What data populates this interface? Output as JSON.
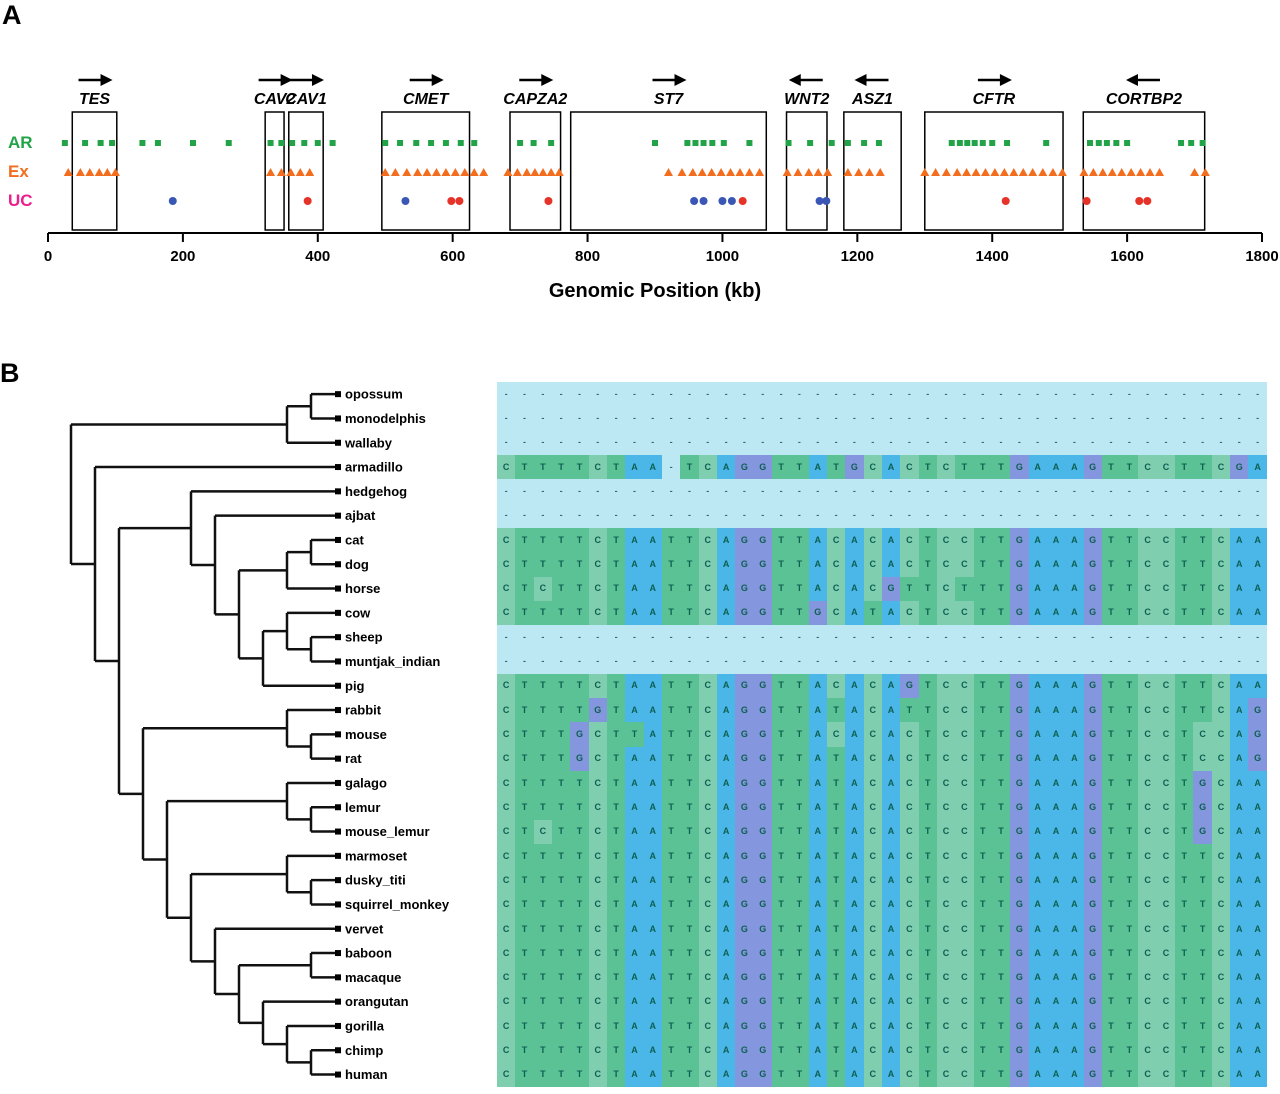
{
  "panelA": {
    "label": "A",
    "axis": {
      "title": "Genomic Position (kb)",
      "min": 0,
      "max": 1800,
      "ticks": [
        0,
        200,
        400,
        600,
        800,
        1000,
        1200,
        1400,
        1600,
        1800
      ]
    },
    "tracks": [
      {
        "label": "AR",
        "color": "#22a348",
        "marker": "square"
      },
      {
        "label": "Ex",
        "color": "#f26d1e",
        "marker": "triangle"
      },
      {
        "label": "UC",
        "color": "#ea1f8e",
        "marker": "circle"
      }
    ],
    "genes": [
      {
        "name": "TES",
        "start": 36,
        "end": 102,
        "strand": "+"
      },
      {
        "name": "CAV2",
        "start": 322,
        "end": 350,
        "strand": "+"
      },
      {
        "name": "CAV1",
        "start": 357,
        "end": 408,
        "strand": "+"
      },
      {
        "name": "CMET",
        "start": 495,
        "end": 625,
        "strand": "+"
      },
      {
        "name": "CAPZA2",
        "start": 685,
        "end": 760,
        "strand": "+"
      },
      {
        "name": "ST7",
        "start": 775,
        "end": 1065,
        "strand": "+"
      },
      {
        "name": "WNT2",
        "start": 1095,
        "end": 1155,
        "strand": "-"
      },
      {
        "name": "ASZ1",
        "start": 1180,
        "end": 1265,
        "strand": "-"
      },
      {
        "name": "CFTR",
        "start": 1300,
        "end": 1505,
        "strand": "+"
      },
      {
        "name": "CORTBP2",
        "start": 1535,
        "end": 1715,
        "strand": "-"
      }
    ],
    "markers": {
      "AR": [
        25,
        55,
        78,
        95,
        140,
        163,
        215,
        268,
        330,
        346,
        362,
        380,
        400,
        422,
        500,
        522,
        546,
        568,
        590,
        612,
        632,
        700,
        720,
        746,
        900,
        948,
        960,
        972,
        985,
        1002,
        1040,
        1098,
        1130,
        1162,
        1186,
        1210,
        1232,
        1340,
        1352,
        1363,
        1374,
        1386,
        1400,
        1422,
        1480,
        1545,
        1558,
        1570,
        1584,
        1600,
        1680,
        1695,
        1712
      ],
      "Ex": [
        30,
        48,
        62,
        76,
        88,
        100,
        330,
        346,
        360,
        374,
        388,
        500,
        515,
        532,
        548,
        562,
        576,
        590,
        604,
        618,
        632,
        646,
        682,
        696,
        710,
        722,
        734,
        746,
        758,
        920,
        940,
        956,
        970,
        984,
        998,
        1012,
        1026,
        1040,
        1055,
        1096,
        1112,
        1128,
        1142,
        1156,
        1186,
        1202,
        1218,
        1234,
        1300,
        1316,
        1332,
        1348,
        1362,
        1376,
        1390,
        1404,
        1418,
        1432,
        1446,
        1460,
        1475,
        1490,
        1504,
        1536,
        1550,
        1564,
        1578,
        1592,
        1606,
        1620,
        1634,
        1648,
        1700,
        1716
      ],
      "UC": [
        {
          "pos": 185,
          "c": "blue"
        },
        {
          "pos": 385,
          "c": "red"
        },
        {
          "pos": 530,
          "c": "blue"
        },
        {
          "pos": 598,
          "c": "red"
        },
        {
          "pos": 610,
          "c": "red"
        },
        {
          "pos": 742,
          "c": "red"
        },
        {
          "pos": 958,
          "c": "blue"
        },
        {
          "pos": 972,
          "c": "blue"
        },
        {
          "pos": 1000,
          "c": "blue"
        },
        {
          "pos": 1014,
          "c": "blue"
        },
        {
          "pos": 1030,
          "c": "red"
        },
        {
          "pos": 1144,
          "c": "blue"
        },
        {
          "pos": 1154,
          "c": "blue"
        },
        {
          "pos": 1420,
          "c": "red"
        },
        {
          "pos": 1540,
          "c": "red"
        },
        {
          "pos": 1618,
          "c": "red"
        },
        {
          "pos": 1630,
          "c": "red"
        }
      ]
    },
    "uc_colors": {
      "blue": "#3a57b5",
      "red": "#e63329"
    }
  },
  "panelB": {
    "label": "B",
    "tree": [
      [
        [
          "opossum",
          "monodelphis"
        ],
        "wallaby"
      ],
      [
        "armadillo",
        [
          [
            "hedgehog",
            [
              "ajbat",
              [
                [
                  [
                    "cat",
                    "dog"
                  ],
                  "horse"
                ],
                [
                  [
                    "cow",
                    [
                      "sheep",
                      "muntjak_indian"
                    ]
                  ],
                  "pig"
                ]
              ]
            ]
          ],
          [
            [
              "rabbit",
              [
                "mouse",
                "rat"
              ]
            ],
            [
              [
                "galago",
                [
                  "lemur",
                  "mouse_lemur"
                ]
              ],
              [
                [
                  "marmoset",
                  [
                    "dusky_titi",
                    "squirrel_monkey"
                  ]
                ],
                [
                  "vervet",
                  [
                    [
                      "baboon",
                      "macaque"
                    ],
                    [
                      "orangutan",
                      [
                        "gorilla",
                        [
                          "chimp",
                          "human"
                        ]
                      ]
                    ]
                  ]
                ]
              ]
            ]
          ]
        ]
      ]
    ],
    "species": [
      {
        "name": "opossum",
        "seq": "------------------------------------------"
      },
      {
        "name": "monodelphis",
        "seq": "------------------------------------------"
      },
      {
        "name": "wallaby",
        "seq": "------------------------------------------"
      },
      {
        "name": "armadillo",
        "seq": "CTTTTCTAA-TCAGGTTATGCACTCTTTGAAAGTTCCTTCGA"
      },
      {
        "name": "hedgehog",
        "seq": "------------------------------------------"
      },
      {
        "name": "ajbat",
        "seq": "------------------------------------------"
      },
      {
        "name": "cat",
        "seq": "CTTTTCTAATTCAGGTTACACACTCCTTGAAAGTTCCTTCAA"
      },
      {
        "name": "dog",
        "seq": "CTTTTCTAATTCAGGTTACACACTCCTTGAAAGTTCCTTCAA"
      },
      {
        "name": "horse",
        "seq": "CTCTTCTAATTCAGGTTACACGTTCTTTGAAAGTTCCTTCAA"
      },
      {
        "name": "cow",
        "seq": "CTTTTCTAATTCAGGTTGCATACTCCTTGAAAGTTCCTTCAA"
      },
      {
        "name": "sheep",
        "seq": "------------------------------------------"
      },
      {
        "name": "muntjak_indian",
        "seq": "------------------------------------------"
      },
      {
        "name": "pig",
        "seq": "CTTTTCTAATTCAGGTTACACAGTCCTTGAAAGTTCCTTCAA"
      },
      {
        "name": "rabbit",
        "seq": "CTTTTGTAATTCAGGTTATACATTCCTTGAAAGTTCCTTCAG"
      },
      {
        "name": "mouse",
        "seq": "CTTTGCTTATTCAGGTTACACACTCCTTGAAAGTTCCTCCAG"
      },
      {
        "name": "rat",
        "seq": "CTTTGCTAATTCAGGTTATACACTCCTTGAAAGTTCCTCCAG"
      },
      {
        "name": "galago",
        "seq": "CTTTTCTAATTCAGGTTATACACTCCTTGAAAGTTCCTGCAA"
      },
      {
        "name": "lemur",
        "seq": "CTTTTCTAATTCAGGTTATACACTCCTTGAAAGTTCCTGCAA"
      },
      {
        "name": "mouse_lemur",
        "seq": "CTCTTCTAATTCAGGTTATACACTCCTTGAAAGTTCCTGCAA"
      },
      {
        "name": "marmoset",
        "seq": "CTTTTCTAATTCAGGTTATACACTCCTTGAAAGTTCCTTCAA"
      },
      {
        "name": "dusky_titi",
        "seq": "CTTTTCTAATTCAGGTTATACACTCCTTGAAAGTTCCTTCAA"
      },
      {
        "name": "squirrel_monkey",
        "seq": "CTTTTCTAATTCAGGTTATACACTCCTTGAAAGTTCCTTCAA"
      },
      {
        "name": "vervet",
        "seq": "CTTTTCTAATTCAGGTTATACACTCCTTGAAAGTTCCTTCAA"
      },
      {
        "name": "baboon",
        "seq": "CTTTTCTAATTCAGGTTATACACTCCTTGAAAGTTCCTTCAA"
      },
      {
        "name": "macaque",
        "seq": "CTTTTCTAATTCAGGTTATACACTCCTTGAAAGTTCCTTCAA"
      },
      {
        "name": "orangutan",
        "seq": "CTTTTCTAATTCAGGTTATACACTCCTTGAAAGTTCCTTCAA"
      },
      {
        "name": "gorilla",
        "seq": "CTTTTCTAATTCAGGTTATACACTCCTTGAAAGTTCCTTCAA"
      },
      {
        "name": "chimp",
        "seq": "CTTTTCTAATTCAGGTTATACACTCCTTGAAAGTTCCTTCAA"
      },
      {
        "name": "human",
        "seq": "CTTTTCTAATTCAGGTTATACACTCCTTGAAAGTTCCTTCAA"
      }
    ],
    "base_colors": {
      "A": "#4bb7e8",
      "C": "#7fceb0",
      "G": "#8496dd",
      "T": "#5bc295",
      "-": "#bce8f4"
    },
    "letter_color": "#0d6052",
    "tree_color": "#111111"
  }
}
